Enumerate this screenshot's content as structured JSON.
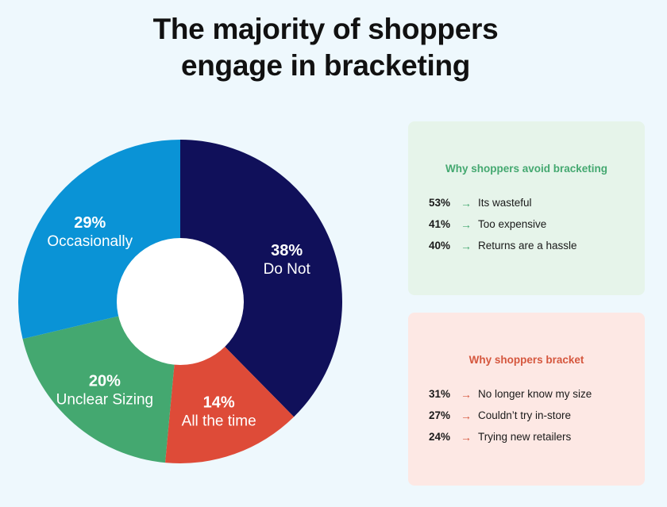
{
  "title": {
    "line1": "The majority of shoppers",
    "line2": "engage in bracketing"
  },
  "chart_data": {
    "type": "pie",
    "categories": [
      "Do Not",
      "All the time",
      "Unclear Sizing",
      "Occasionally"
    ],
    "values": [
      38,
      14,
      20,
      29
    ],
    "labels": [
      "38%",
      "14%",
      "20%",
      "29%"
    ],
    "colors": [
      "#10105a",
      "#de4b38",
      "#44a870",
      "#0a93d6"
    ],
    "donut": true
  },
  "avoid_panel": {
    "title": "Why shoppers avoid bracketing",
    "items": [
      {
        "pct": "53%",
        "arrow": "→",
        "text": "Its wasteful"
      },
      {
        "pct": "41%",
        "arrow": "→",
        "text": "Too expensive"
      },
      {
        "pct": "40%",
        "arrow": "→",
        "text": "Returns are a hassle"
      }
    ]
  },
  "bracket_panel": {
    "title": "Why shoppers bracket",
    "items": [
      {
        "pct": "31%",
        "arrow": "→",
        "text": "No longer know my size"
      },
      {
        "pct": "27%",
        "arrow": "→",
        "text": "Couldn’t try in-store"
      },
      {
        "pct": "24%",
        "arrow": "→",
        "text": "Trying new retailers"
      }
    ]
  }
}
